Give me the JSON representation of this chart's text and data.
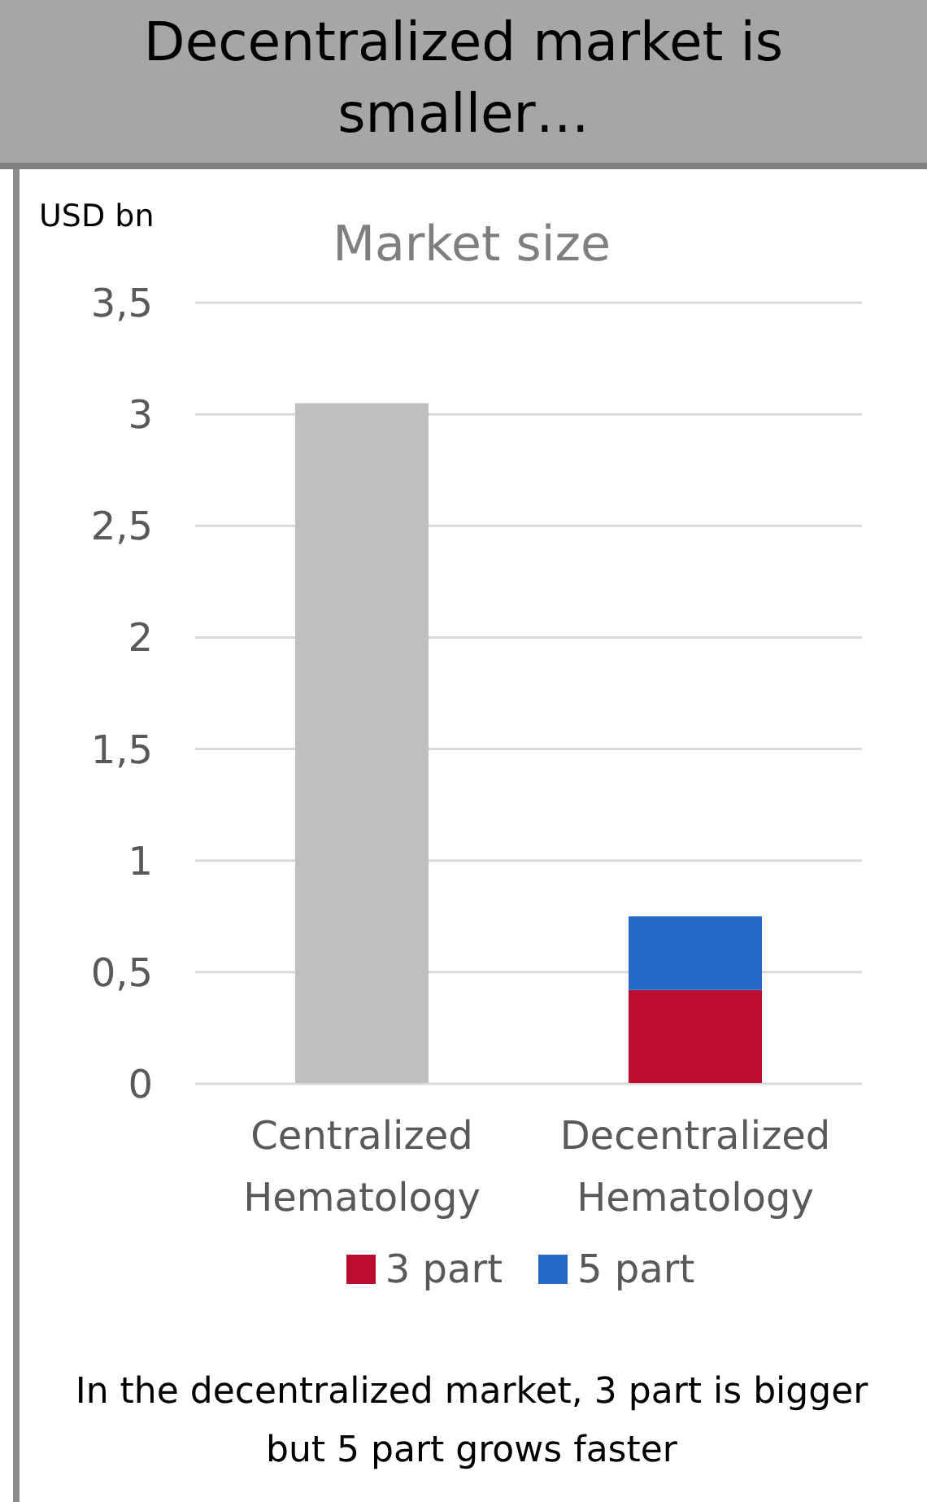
{
  "chart_data": {
    "type": "bar",
    "title": "Decentralized market is smaller…",
    "subtitle": "Market size",
    "ylabel": "USD bn",
    "categories": [
      "Centralized Hematology",
      "Decentralized Hematology"
    ],
    "series": [
      {
        "color": "#bfbfbf",
        "values": [
          3.05,
          null
        ]
      },
      {
        "name": "3 part",
        "color": "#ba0c2f",
        "values": [
          null,
          0.42
        ]
      },
      {
        "name": "5 part",
        "color": "#2369c6",
        "values": [
          null,
          0.33
        ]
      }
    ],
    "stacked": true,
    "ylim": [
      0,
      3.5
    ],
    "yticks": [
      0,
      {
        "value": 0.5,
        "label": "0,5"
      },
      1,
      {
        "value": 1.5,
        "label": "1,5"
      },
      2,
      {
        "value": 2.5,
        "label": "2,5"
      },
      3,
      {
        "value": 3.5,
        "label": "3,5"
      }
    ],
    "grid": "y",
    "legend": "bottom",
    "annotations": [
      "In the decentralized market, 3 part is bigger but 5 part grows faster"
    ]
  }
}
